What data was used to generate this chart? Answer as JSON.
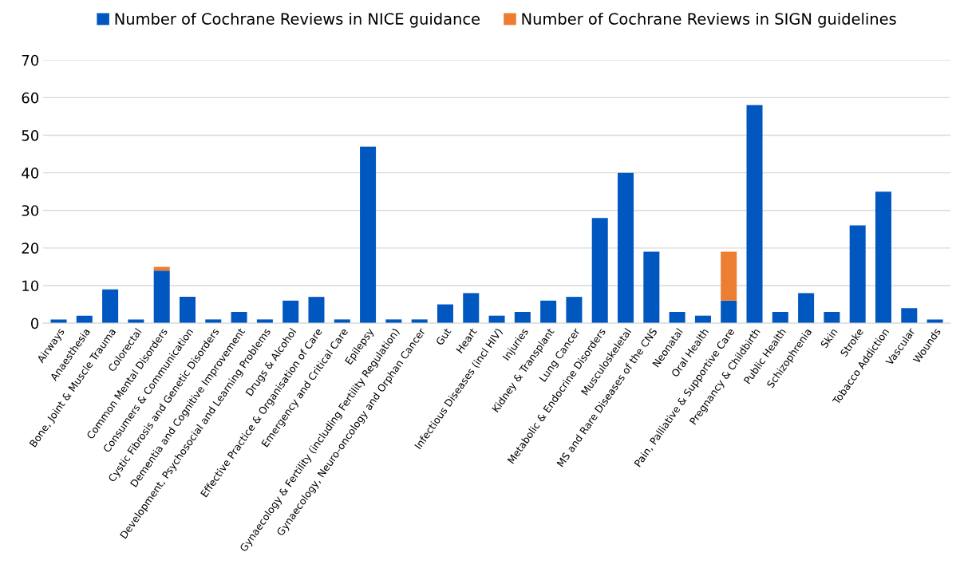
{
  "chart_data": {
    "type": "bar",
    "stacked": true,
    "categories": [
      "Airways",
      "Anaesthesia",
      "Bone, Joint & Muscle Trauma",
      "Colorectal",
      "Common Mental Disorders",
      "Consumers & Communication",
      "Cystic Fibrosis and Genetic Disorders",
      "Dementia and Cognitive Improvement",
      "Development, Psychosocial and Learning Problems",
      "Drugs & Alcohol",
      "Effective Practice & Organisation of Care",
      "Emergency and Critical Care",
      "Epilepsy",
      "Gynaecology & Fertility (including Fertility Regulation)",
      "Gynaecology, Neuro-oncology and Orphan Cancer",
      "Gut",
      "Heart",
      "Infectious Diseases (incl HIV)",
      "Injuries",
      "Kidney & Transplant",
      "Lung Cancer",
      "Metabolic & Endocrine Disorders",
      "Musculoskeletal",
      "MS and Rare Diseases of the CNS",
      "Neonatal",
      "Oral Health",
      "Pain, Palliative & Supportive Care",
      "Pregnancy & Childbirth",
      "Public Health",
      "Schizophrenia",
      "Skin",
      "Stroke",
      "Tobacco Addiction",
      "Vascular",
      "Wounds"
    ],
    "series": [
      {
        "name": "Number of Cochrane Reviews in NICE guidance",
        "color": "#0057c0",
        "values": [
          1,
          2,
          9,
          1,
          14,
          7,
          1,
          3,
          1,
          6,
          7,
          1,
          47,
          1,
          1,
          5,
          8,
          2,
          3,
          6,
          7,
          28,
          40,
          19,
          3,
          2,
          6,
          58,
          3,
          8,
          3,
          26,
          35,
          4,
          1
        ]
      },
      {
        "name": "Number of Cochrane Reviews in SIGN guidelines",
        "color": "#ed7d31",
        "values": [
          0,
          0,
          0,
          0,
          1,
          0,
          0,
          0,
          0,
          0,
          0,
          0,
          0,
          0,
          0,
          0,
          0,
          0,
          0,
          0,
          0,
          0,
          0,
          0,
          0,
          0,
          13,
          0,
          0,
          0,
          0,
          0,
          0,
          0,
          0
        ]
      }
    ],
    "ylim": [
      0,
      70
    ],
    "yticks": [
      0,
      10,
      20,
      30,
      40,
      50,
      60,
      70
    ],
    "grid": "y",
    "legend": "top"
  }
}
